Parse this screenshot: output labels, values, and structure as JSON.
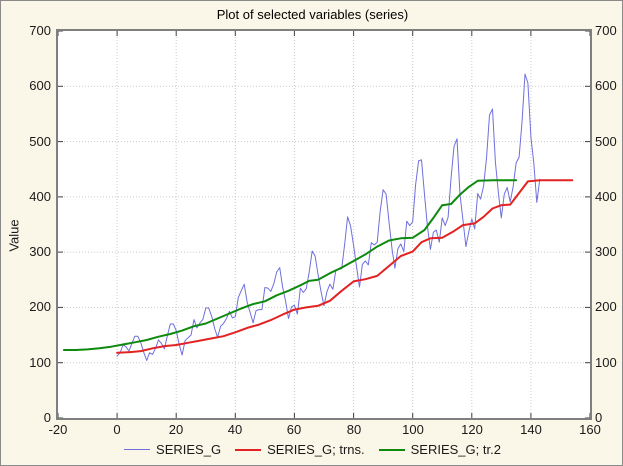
{
  "window": {
    "background_color": "#FBF7E8",
    "plot_background_color": "#FFFFFF",
    "frame_color": "#7F7F7F",
    "grid_color": "#C9C9C9",
    "tick_color": "#404040",
    "text_color": "#1a1a1a"
  },
  "chart_data": {
    "type": "line",
    "title": "Plot of selected variables (series)",
    "xlabel": "",
    "ylabel": "Value",
    "xlim": [
      -20,
      160
    ],
    "ylim": [
      0,
      700
    ],
    "xticks": [
      -20,
      0,
      20,
      40,
      60,
      80,
      100,
      120,
      140,
      160
    ],
    "yticks": [
      0,
      100,
      200,
      300,
      400,
      500,
      600,
      700
    ],
    "grid": true,
    "grid_style": "dotted",
    "legend_position": "bottom",
    "right_axis_labels": true,
    "series": [
      {
        "name": "SERIES_G",
        "color": "#6F6FDE",
        "width": 1,
        "x_start": 0,
        "x_step": 1,
        "values": [
          112,
          118,
          132,
          129,
          121,
          135,
          148,
          148,
          136,
          119,
          104,
          118,
          115,
          126,
          141,
          135,
          125,
          149,
          170,
          170,
          158,
          133,
          114,
          140,
          145,
          150,
          178,
          163,
          172,
          178,
          199,
          199,
          184,
          162,
          146,
          166,
          171,
          180,
          193,
          181,
          183,
          218,
          230,
          242,
          209,
          191,
          172,
          194,
          196,
          196,
          236,
          235,
          229,
          243,
          264,
          272,
          237,
          211,
          180,
          201,
          204,
          188,
          235,
          227,
          234,
          264,
          302,
          293,
          259,
          229,
          203,
          229,
          242,
          233,
          267,
          269,
          270,
          315,
          364,
          347,
          312,
          274,
          237,
          278,
          284,
          277,
          317,
          313,
          318,
          374,
          413,
          405,
          355,
          306,
          271,
          306,
          315,
          301,
          356,
          348,
          355,
          422,
          465,
          467,
          404,
          347,
          305,
          336,
          340,
          318,
          362,
          348,
          363,
          435,
          491,
          505,
          404,
          359,
          310,
          337,
          360,
          342,
          406,
          396,
          420,
          472,
          548,
          559,
          463,
          407,
          362,
          405,
          417,
          391,
          419,
          461,
          472,
          535,
          622,
          606,
          508,
          461,
          390,
          432
        ]
      },
      {
        "name": "SERIES_G; trns.",
        "color": "#E32222",
        "width": 2,
        "points": [
          [
            0,
            118
          ],
          [
            4,
            119
          ],
          [
            8,
            121
          ],
          [
            12,
            126
          ],
          [
            16,
            130
          ],
          [
            20,
            132
          ],
          [
            24,
            136
          ],
          [
            28,
            140
          ],
          [
            32,
            144
          ],
          [
            36,
            148
          ],
          [
            40,
            155
          ],
          [
            44,
            163
          ],
          [
            48,
            169
          ],
          [
            52,
            177
          ],
          [
            56,
            187
          ],
          [
            60,
            196
          ],
          [
            64,
            200
          ],
          [
            68,
            203
          ],
          [
            72,
            212
          ],
          [
            76,
            230
          ],
          [
            80,
            247
          ],
          [
            84,
            251
          ],
          [
            88,
            257
          ],
          [
            92,
            275
          ],
          [
            96,
            293
          ],
          [
            100,
            301
          ],
          [
            103,
            318
          ],
          [
            106,
            325
          ],
          [
            110,
            326
          ],
          [
            114,
            338
          ],
          [
            117,
            349
          ],
          [
            121,
            352
          ],
          [
            124,
            364
          ],
          [
            127,
            379
          ],
          [
            130,
            385
          ],
          [
            133,
            386
          ],
          [
            136,
            407
          ],
          [
            139,
            428
          ],
          [
            143,
            430
          ],
          [
            148,
            430
          ],
          [
            154,
            430
          ]
        ]
      },
      {
        "name": "SERIES_G; tr.2",
        "color": "#0E8A0E",
        "width": 2,
        "points": [
          [
            -18,
            123
          ],
          [
            -14,
            123
          ],
          [
            -10,
            124
          ],
          [
            -6,
            126
          ],
          [
            -2,
            129
          ],
          [
            2,
            133
          ],
          [
            6,
            137
          ],
          [
            10,
            141
          ],
          [
            14,
            147
          ],
          [
            18,
            152
          ],
          [
            22,
            158
          ],
          [
            26,
            166
          ],
          [
            30,
            171
          ],
          [
            34,
            180
          ],
          [
            38,
            189
          ],
          [
            42,
            198
          ],
          [
            46,
            206
          ],
          [
            50,
            211
          ],
          [
            54,
            222
          ],
          [
            58,
            230
          ],
          [
            62,
            240
          ],
          [
            65,
            248
          ],
          [
            68,
            250
          ],
          [
            72,
            262
          ],
          [
            76,
            272
          ],
          [
            80,
            284
          ],
          [
            84,
            296
          ],
          [
            88,
            310
          ],
          [
            92,
            321
          ],
          [
            96,
            325
          ],
          [
            100,
            326
          ],
          [
            104,
            340
          ],
          [
            107,
            362
          ],
          [
            110,
            385
          ],
          [
            113,
            387
          ],
          [
            116,
            404
          ],
          [
            119,
            418
          ],
          [
            122,
            429
          ],
          [
            127,
            430
          ],
          [
            131,
            430
          ],
          [
            135,
            430
          ]
        ]
      }
    ]
  }
}
